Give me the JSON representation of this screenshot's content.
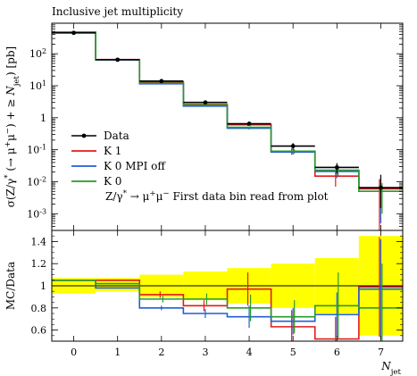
{
  "chart_data": [
    {
      "type": "line",
      "title": "Inclusive jet multiplicity",
      "ylabel": "σ(Z/γ* (→ μ+μ−) + ≥ Njet) [pb]",
      "xlabel": "Njet",
      "yscale": "log",
      "ylim": [
        0.0003,
        900
      ],
      "xlim": [
        -0.5,
        7.5
      ],
      "x_ticks": [
        "0",
        "1",
        "2",
        "3",
        "4",
        "5",
        "6",
        "7"
      ],
      "y_ticks": [
        "10^2",
        "10^1",
        "1",
        "10^-1",
        "10^-2",
        "10^-3"
      ],
      "bin_edges": [
        -0.5,
        0.5,
        1.5,
        2.5,
        3.5,
        4.5,
        5.5,
        6.5,
        7.5
      ],
      "annotation": "Z/γ* → μ+μ− First data bin read from plot",
      "legend_position": "bottom-left",
      "data": {
        "name": "Data",
        "x": [
          0,
          1,
          2,
          3,
          4,
          5,
          6,
          7
        ],
        "y": [
          450,
          65,
          14,
          3.0,
          0.65,
          0.13,
          0.028,
          0.0065
        ],
        "yerr_low": [
          20,
          4,
          0.9,
          0.25,
          0.08,
          0.03,
          0.01,
          0.005
        ],
        "yerr_high": [
          20,
          4,
          0.9,
          0.25,
          0.08,
          0.03,
          0.01,
          0.01
        ],
        "color": "#000000"
      },
      "series": [
        {
          "name": "K 1",
          "values": [
            470,
            66,
            13,
            2.6,
            0.6,
            0.09,
            0.015,
            0.006
          ],
          "color": "#e41a1c",
          "error": [
            0.002,
            0.002,
            0.002,
            0.002,
            0.05,
            0.02,
            0.008,
            0.006
          ]
        },
        {
          "name": "K 0 MPI off",
          "values": [
            470,
            64,
            11.5,
            2.3,
            0.47,
            0.085,
            0.021,
            0.0065
          ],
          "color": "#1f5fd6",
          "error": [
            0.002,
            0.002,
            0.002,
            0.002,
            0.04,
            0.015,
            0.008,
            0.006
          ]
        },
        {
          "name": "K 0",
          "values": [
            470,
            65,
            12,
            2.5,
            0.5,
            0.09,
            0.023,
            0.005
          ],
          "color": "#2a9a2a",
          "error": [
            0.002,
            0.002,
            0.002,
            0.002,
            0.04,
            0.015,
            0.008,
            0.004
          ]
        }
      ]
    },
    {
      "type": "line",
      "ylabel": "MC/Data",
      "xlabel": "Njet",
      "ylim": [
        0.5,
        1.5
      ],
      "x_ticks": [
        "0",
        "1",
        "2",
        "3",
        "4",
        "5",
        "6",
        "7"
      ],
      "y_ticks": [
        "0.6",
        "0.8",
        "1",
        "1.2",
        "1.4"
      ],
      "bin_edges": [
        -0.5,
        0.5,
        1.5,
        2.5,
        3.5,
        4.5,
        5.5,
        6.5,
        7.5
      ],
      "data_band": {
        "color": "#ffff00",
        "lower": [
          0.93,
          0.95,
          0.9,
          0.87,
          0.84,
          0.8,
          0.75,
          0.55
        ],
        "upper": [
          1.07,
          1.07,
          1.1,
          1.13,
          1.16,
          1.2,
          1.25,
          1.45
        ]
      },
      "series": [
        {
          "name": "K 1",
          "values": [
            1.05,
            1.05,
            0.92,
            0.82,
            0.97,
            0.63,
            0.52,
            0.99
          ],
          "error": [
            0,
            0,
            0.03,
            0.05,
            0.15,
            0.15,
            0.2,
            0.45
          ],
          "color": "#e41a1c"
        },
        {
          "name": "K 0 MPI off",
          "values": [
            1.05,
            0.98,
            0.8,
            0.75,
            0.72,
            0.68,
            0.74,
            0.97
          ],
          "error": [
            0,
            0,
            0.02,
            0.04,
            0.1,
            0.12,
            0.2,
            0.45
          ],
          "color": "#1f5fd6"
        },
        {
          "name": "K 0",
          "values": [
            1.05,
            1.02,
            0.88,
            0.88,
            0.8,
            0.72,
            0.82,
            0.8
          ],
          "error": [
            0,
            0,
            0.03,
            0.05,
            0.12,
            0.15,
            0.3,
            0.4
          ],
          "color": "#2a9a2a"
        }
      ]
    }
  ]
}
